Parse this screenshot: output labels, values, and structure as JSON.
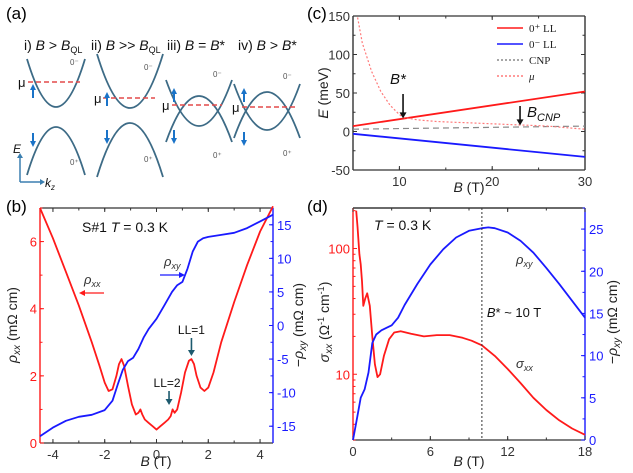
{
  "panel_labels": {
    "a": "(a)",
    "b": "(b)",
    "c": "(c)",
    "d": "(d)"
  },
  "colors": {
    "red": "#ff1a1a",
    "blue": "#1a1aff",
    "band": "#3d6b86",
    "arrow_blue": "#1a73c8",
    "mu_line": "#e34a4a",
    "gray": "#555555"
  },
  "schematic": {
    "axes": {
      "y_label": "E",
      "x_label": "k",
      "x_sub": "z"
    },
    "mu_label": "μ",
    "band_up_label": "0⁻",
    "band_down_label": "0⁺",
    "cases": [
      {
        "roman": "i)",
        "cond": "B > B",
        "sub": "QL"
      },
      {
        "roman": "ii)",
        "cond": "B >> B",
        "sub": "QL"
      },
      {
        "roman": "iii)",
        "cond": "B = B*",
        "sub": ""
      },
      {
        "roman": "iv)",
        "cond": "B > B*",
        "sub": ""
      }
    ]
  },
  "chart_data": [
    {
      "id": "c",
      "type": "line",
      "title": "",
      "xlabel": "B (T)",
      "ylabel": "E (meV)",
      "xlim": [
        5,
        30
      ],
      "ylim": [
        -50,
        150
      ],
      "xticks": [
        10,
        20,
        30
      ],
      "yticks": [
        -50,
        0,
        50,
        100,
        150
      ],
      "legend": {
        "placement": "top-right",
        "entries": [
          "0⁺ LL",
          "0⁻ LL",
          "CNP",
          "μ"
        ]
      },
      "annotations": [
        {
          "text": "B*",
          "x": 10.5
        },
        {
          "text": "B",
          "sub": "CNP",
          "x": 23
        }
      ],
      "series": [
        {
          "name": "0⁺ LL",
          "style": "solid",
          "color": "red",
          "x": [
            5,
            30
          ],
          "y": [
            7,
            52
          ]
        },
        {
          "name": "0⁻ LL",
          "style": "solid",
          "color": "blue",
          "x": [
            5,
            30
          ],
          "y": [
            -3,
            -33
          ]
        },
        {
          "name": "CNP",
          "style": "dotted",
          "color": "gray",
          "x": [
            5,
            30
          ],
          "y": [
            3,
            7
          ]
        },
        {
          "name": "μ",
          "style": "dashed",
          "color": "red",
          "x": [
            5.5,
            6,
            7,
            8,
            9,
            10,
            10.5,
            12,
            14,
            16,
            18,
            20,
            22,
            24,
            26,
            28,
            30
          ],
          "y": [
            148,
            115,
            78,
            52,
            34,
            22,
            18,
            15,
            13,
            12,
            11,
            10,
            9,
            8,
            7,
            5,
            3
          ]
        }
      ]
    },
    {
      "id": "b",
      "type": "line",
      "title": "S#1   T = 0.3 K",
      "xlabel": "B (T)",
      "ylabel": "ρxx (mΩ cm)",
      "ylabel_right": "-ρxy (mΩ cm)",
      "xlim": [
        -4.5,
        4.5
      ],
      "ylim": [
        0,
        7
      ],
      "ylim_right": [
        -17.5,
        17.5
      ],
      "xticks": [
        -4,
        -2,
        0,
        2,
        4
      ],
      "yticks": [
        0,
        2,
        4,
        6
      ],
      "yticks_right": [
        -15,
        -10,
        -5,
        0,
        5,
        10,
        15
      ],
      "annotations": [
        {
          "text": "LL=1",
          "x": 1.35
        },
        {
          "text": "LL=2",
          "x": 0.6
        },
        {
          "text": "ρxx",
          "arrow": "left"
        },
        {
          "text": "ρxy",
          "arrow": "right"
        }
      ],
      "series": [
        {
          "name": "ρxx",
          "axis": "left",
          "color": "red",
          "x": [
            -4.5,
            -4,
            -3.5,
            -3,
            -2.5,
            -2.2,
            -2,
            -1.85,
            -1.7,
            -1.55,
            -1.45,
            -1.35,
            -1.25,
            -1.1,
            -0.95,
            -0.8,
            -0.7,
            -0.62,
            -0.55,
            -0.45,
            -0.3,
            -0.15,
            0,
            0.15,
            0.3,
            0.45,
            0.55,
            0.62,
            0.7,
            0.8,
            0.95,
            1.1,
            1.25,
            1.35,
            1.45,
            1.55,
            1.7,
            1.85,
            2,
            2.2,
            2.5,
            3,
            3.5,
            4,
            4.5
          ],
          "y": [
            7.0,
            6.1,
            5.1,
            4.1,
            3.0,
            2.3,
            1.8,
            1.55,
            1.6,
            2.0,
            2.35,
            2.5,
            2.3,
            1.7,
            1.15,
            0.85,
            0.9,
            1.0,
            0.85,
            0.7,
            0.6,
            0.5,
            0.4,
            0.5,
            0.6,
            0.7,
            0.8,
            1.0,
            0.9,
            1.0,
            1.5,
            2.1,
            2.45,
            2.5,
            2.35,
            2.0,
            1.65,
            1.55,
            1.65,
            2.1,
            3.0,
            4.2,
            5.3,
            6.3,
            7.05
          ]
        },
        {
          "name": "ρxy",
          "axis": "right",
          "color": "blue",
          "x": [
            -4.5,
            -4,
            -3.5,
            -3,
            -2.5,
            -2,
            -1.7,
            -1.5,
            -1.3,
            -1.1,
            -0.9,
            -0.7,
            -0.5,
            -0.3,
            0,
            0.3,
            0.6,
            0.8,
            1.0,
            1.2,
            1.4,
            1.6,
            1.8,
            2,
            2.5,
            3,
            3.5,
            4,
            4.5
          ],
          "y": [
            -16.5,
            -15.2,
            -14.2,
            -13.6,
            -13.3,
            -12.6,
            -11.2,
            -8.8,
            -6.6,
            -5.3,
            -4.8,
            -3.5,
            -1.8,
            -0.5,
            1.0,
            3.0,
            5.0,
            6.0,
            6.5,
            8.5,
            11.0,
            12.5,
            13.0,
            13.2,
            13.5,
            13.8,
            14.5,
            15.5,
            16.5
          ]
        }
      ]
    },
    {
      "id": "d",
      "type": "line",
      "title": "T = 0.3 K",
      "xlabel": "B (T)",
      "ylabel": "σxx (Ω⁻¹ cm⁻¹)",
      "ylabel_right": "-ρxy (mΩ cm)",
      "xlim": [
        0,
        18
      ],
      "ylim": [
        3,
        210
      ],
      "yscale": "log",
      "ylim_right": [
        0,
        27.5
      ],
      "xticks": [
        0,
        6,
        12,
        18
      ],
      "yticks": [
        10,
        100
      ],
      "yticks_right": [
        0,
        5,
        10,
        15,
        20,
        25
      ],
      "annotations": [
        {
          "text": "B* ~ 10 T",
          "x": 10,
          "vline": true
        },
        {
          "text": "ρxy"
        },
        {
          "text": "σxx"
        }
      ],
      "series": [
        {
          "name": "σxx",
          "axis": "left",
          "color": "red",
          "x": [
            0.25,
            0.35,
            0.5,
            0.6,
            0.7,
            0.8,
            0.95,
            1.1,
            1.3,
            1.5,
            1.7,
            1.9,
            2.1,
            2.4,
            2.8,
            3.2,
            3.7,
            4.5,
            5.5,
            6.5,
            7.5,
            8.5,
            9.2,
            10,
            11,
            12,
            13,
            14,
            15,
            16,
            17,
            18
          ],
          "y": [
            200,
            150,
            90,
            75,
            55,
            35,
            40,
            44,
            35,
            20,
            12,
            9.5,
            10,
            14,
            19,
            21.5,
            22,
            21,
            20,
            20.5,
            20.5,
            19.5,
            18.5,
            17,
            14,
            11,
            8.5,
            6.5,
            5.2,
            4.3,
            3.7,
            3.3
          ]
        },
        {
          "name": "-ρxy",
          "axis": "right",
          "color": "blue",
          "x": [
            0,
            0.3,
            0.6,
            0.9,
            1.2,
            1.5,
            1.8,
            2.2,
            2.6,
            3,
            3.5,
            4,
            5,
            6,
            7,
            8,
            9,
            10,
            10.5,
            11,
            12,
            13,
            14,
            15,
            16,
            17,
            18
          ],
          "y": [
            0,
            2.5,
            5,
            6,
            8,
            11.5,
            12.5,
            13,
            13.3,
            13.6,
            14.5,
            16,
            18.5,
            20.8,
            22.6,
            24,
            24.8,
            25.1,
            25.2,
            25.1,
            24.6,
            23.6,
            22.2,
            20.4,
            18.5,
            16.5,
            14.5
          ]
        }
      ]
    }
  ]
}
